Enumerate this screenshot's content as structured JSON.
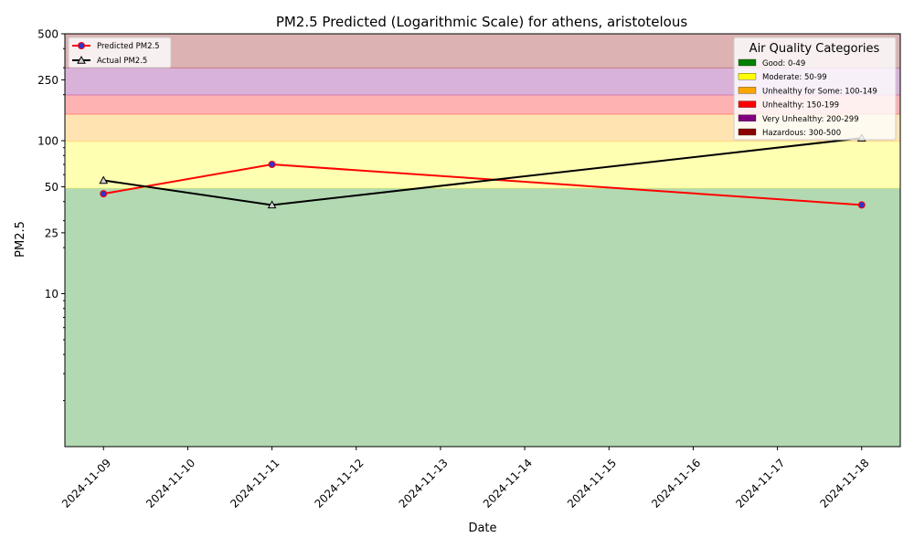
{
  "chart_data": {
    "type": "line",
    "title": "PM2.5 Predicted (Logarithmic Scale) for athens, aristotelous",
    "xlabel": "Date",
    "ylabel": "PM2.5",
    "y_scale": "log",
    "ylim": [
      1,
      500
    ],
    "xlim": [
      "2024-11-08 13:00",
      "2024-11-18 11:00"
    ],
    "x_ticks": [
      "2024-11-09",
      "2024-11-10",
      "2024-11-11",
      "2024-11-12",
      "2024-11-13",
      "2024-11-14",
      "2024-11-15",
      "2024-11-16",
      "2024-11-17",
      "2024-11-18"
    ],
    "y_ticks": [
      {
        "value": 10,
        "label": "10"
      },
      {
        "value": 25,
        "label": "25"
      },
      {
        "value": 50,
        "label": "50"
      },
      {
        "value": 100,
        "label": "100"
      },
      {
        "value": 250,
        "label": "250"
      },
      {
        "value": 500,
        "label": "500"
      }
    ],
    "y_minor_ticks": [
      2,
      3,
      4,
      5,
      6,
      7,
      8,
      9,
      20,
      30,
      40,
      60,
      70,
      80,
      90,
      200,
      300,
      400
    ],
    "grid": false,
    "legend_position": "top-left",
    "series": [
      {
        "name": "Predicted PM2.5",
        "color": "#ff0000",
        "marker": "circle",
        "marker_fill": "#3333cc",
        "points": [
          {
            "x": "2024-11-09",
            "y": 45
          },
          {
            "x": "2024-11-11",
            "y": 70
          },
          {
            "x": "2024-11-18",
            "y": 38
          }
        ]
      },
      {
        "name": "Actual PM2.5",
        "color": "#000000",
        "marker": "triangle",
        "marker_fill": "#d3d3d3",
        "points": [
          {
            "x": "2024-11-09",
            "y": 55
          },
          {
            "x": "2024-11-11",
            "y": 38
          },
          {
            "x": "2024-11-18",
            "y": 104
          }
        ]
      }
    ],
    "bands": [
      {
        "low": 1,
        "high": 49,
        "color": "#008000"
      },
      {
        "low": 49,
        "high": 99,
        "color": "#ffff00"
      },
      {
        "low": 99,
        "high": 149,
        "color": "#ffa500"
      },
      {
        "low": 149,
        "high": 199,
        "color": "#ff0000"
      },
      {
        "low": 199,
        "high": 299,
        "color": "#800080"
      },
      {
        "low": 299,
        "high": 500,
        "color": "#8b0000"
      }
    ],
    "category_legend": {
      "title": "Air Quality Categories",
      "position": "top-right",
      "entries": [
        {
          "label": "Good: 0-49",
          "color": "#008000"
        },
        {
          "label": "Moderate: 50-99",
          "color": "#ffff00"
        },
        {
          "label": "Unhealthy for Some: 100-149",
          "color": "#ffa500"
        },
        {
          "label": "Unhealthy: 150-199",
          "color": "#ff0000"
        },
        {
          "label": "Very Unhealthy: 200-299",
          "color": "#800080"
        },
        {
          "label": "Hazardous: 300-500",
          "color": "#8b0000"
        }
      ]
    }
  }
}
